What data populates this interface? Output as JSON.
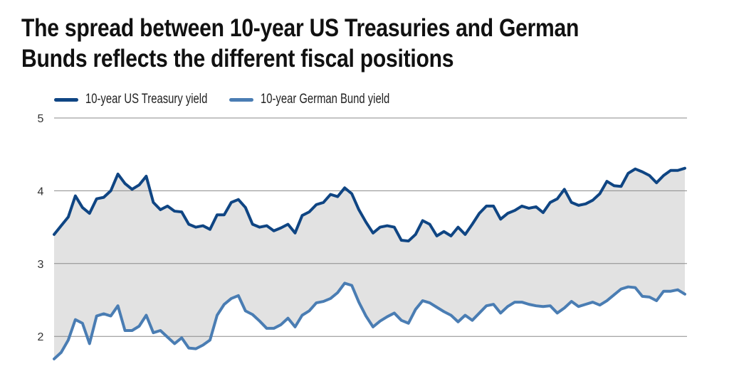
{
  "title": {
    "line1": "The spread between 10-year US Treasuries and German",
    "line2": "Bunds reflects the different fiscal positions"
  },
  "chart_data": {
    "type": "line",
    "title": "The spread between 10-year US Treasuries and German Bunds reflects the different fiscal positions",
    "xlabel": "",
    "ylabel": "",
    "ylim": [
      2,
      5
    ],
    "yticks": [
      "5",
      "4",
      "3",
      "2"
    ],
    "grid": "horizontal",
    "legend_position": "top-left",
    "fill_between_series": true,
    "colors": {
      "us": "#0f4583",
      "bund": "#4a7db3",
      "fill": "#e2e2e2",
      "grid": "#8a8a8a"
    },
    "series": [
      {
        "name": "10-year US Treasury yield",
        "values": [
          3.4,
          3.52,
          3.64,
          3.93,
          3.77,
          3.69,
          3.89,
          3.91,
          4.0,
          4.23,
          4.1,
          4.02,
          4.08,
          4.2,
          3.84,
          3.74,
          3.79,
          3.72,
          3.71,
          3.54,
          3.5,
          3.52,
          3.47,
          3.67,
          3.67,
          3.84,
          3.88,
          3.77,
          3.54,
          3.5,
          3.52,
          3.45,
          3.49,
          3.54,
          3.42,
          3.66,
          3.71,
          3.81,
          3.84,
          3.95,
          3.92,
          4.04,
          3.96,
          3.74,
          3.57,
          3.42,
          3.5,
          3.52,
          3.5,
          3.32,
          3.31,
          3.4,
          3.59,
          3.54,
          3.38,
          3.44,
          3.38,
          3.5,
          3.4,
          3.54,
          3.69,
          3.79,
          3.79,
          3.61,
          3.69,
          3.73,
          3.79,
          3.76,
          3.78,
          3.7,
          3.84,
          3.89,
          4.02,
          3.84,
          3.8,
          3.82,
          3.87,
          3.96,
          4.13,
          4.07,
          4.06,
          4.24,
          4.3,
          4.26,
          4.21,
          4.11,
          4.21,
          4.28,
          4.28,
          4.31
        ]
      },
      {
        "name": "10-year German Bund yield",
        "values": [
          1.69,
          1.78,
          1.95,
          2.23,
          2.18,
          1.9,
          2.28,
          2.31,
          2.28,
          2.42,
          2.08,
          2.08,
          2.14,
          2.29,
          2.05,
          2.08,
          1.99,
          1.9,
          1.98,
          1.84,
          1.83,
          1.88,
          1.95,
          2.29,
          2.44,
          2.52,
          2.56,
          2.35,
          2.3,
          2.21,
          2.11,
          2.11,
          2.16,
          2.25,
          2.13,
          2.29,
          2.35,
          2.46,
          2.48,
          2.52,
          2.6,
          2.73,
          2.7,
          2.47,
          2.28,
          2.13,
          2.21,
          2.27,
          2.32,
          2.22,
          2.18,
          2.37,
          2.49,
          2.46,
          2.4,
          2.34,
          2.29,
          2.2,
          2.29,
          2.22,
          2.32,
          2.42,
          2.44,
          2.32,
          2.41,
          2.47,
          2.47,
          2.44,
          2.42,
          2.41,
          2.42,
          2.32,
          2.39,
          2.48,
          2.41,
          2.44,
          2.47,
          2.43,
          2.49,
          2.57,
          2.65,
          2.68,
          2.67,
          2.55,
          2.54,
          2.49,
          2.62,
          2.62,
          2.64,
          2.58
        ]
      }
    ]
  }
}
